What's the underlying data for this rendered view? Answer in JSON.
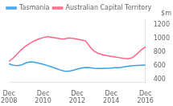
{
  "chart_data": {
    "type": "line",
    "ylabel": "$m",
    "categories": [
      "Dec\n2008",
      null,
      null,
      null,
      null,
      null,
      null,
      null,
      "Dec\n2010",
      null,
      null,
      null,
      null,
      null,
      null,
      null,
      "Dec\n2012",
      null,
      null,
      null,
      null,
      null,
      null,
      null,
      "Dec\n2014",
      null,
      null,
      null,
      null,
      null,
      null,
      null,
      "Dec\n2016"
    ],
    "series": [
      {
        "name": "Tasmania",
        "values": [
          625,
          605,
          598,
          610,
          640,
          655,
          648,
          635,
          618,
          600,
          580,
          558,
          535,
          520,
          515,
          530,
          548,
          562,
          572,
          568,
          560,
          558,
          558,
          560,
          562,
          568,
          570,
          580,
          590,
          598,
          602,
          605,
          608
        ]
      },
      {
        "name": "Australian Capital Territory",
        "values": [
          660,
          710,
          775,
          840,
          890,
          930,
          965,
          990,
          1010,
          1025,
          1015,
          1005,
          995,
          992,
          1005,
          1000,
          988,
          975,
          960,
          875,
          810,
          778,
          758,
          745,
          735,
          725,
          715,
          705,
          698,
          718,
          768,
          828,
          875
        ]
      }
    ],
    "ylim": [
      350,
      1280
    ],
    "yticks": [
      400,
      600,
      800,
      1000,
      1200
    ],
    "grid": false,
    "legend": "top left"
  }
}
